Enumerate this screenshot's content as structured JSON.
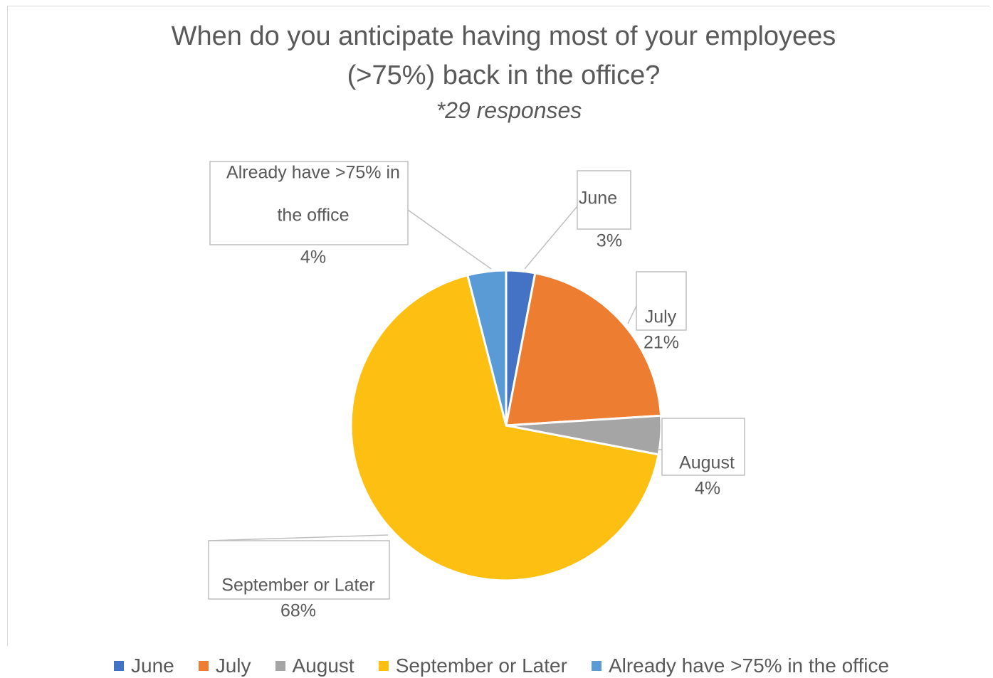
{
  "chart_data": {
    "type": "pie",
    "title": "When do you anticipate having most of your employees (>75%) back in the office?",
    "title_lines": [
      "When do you anticipate having most of your employees",
      "(>75%) back in the office?"
    ],
    "subtitle": "*29 responses",
    "slices": [
      {
        "label": "June",
        "value": 3,
        "value_label": "3%",
        "color": "#4472c4",
        "label_lines": [
          "June"
        ]
      },
      {
        "label": "July",
        "value": 21,
        "value_label": "21%",
        "color": "#ed7d31",
        "label_lines": [
          "July"
        ]
      },
      {
        "label": "August",
        "value": 4,
        "value_label": "4%",
        "color": "#a5a5a5",
        "label_lines": [
          "August"
        ]
      },
      {
        "label": "September or Later",
        "value": 68,
        "value_label": "68%",
        "color": "#fcbf12",
        "label_lines": [
          "September or Later"
        ]
      },
      {
        "label": "Already have >75% in the office",
        "value": 4,
        "value_label": "4%",
        "color": "#5b9bd5",
        "label_lines": [
          "Already have >75% in",
          "the office"
        ]
      }
    ],
    "legend_position": "bottom",
    "data_labels": "callout"
  }
}
